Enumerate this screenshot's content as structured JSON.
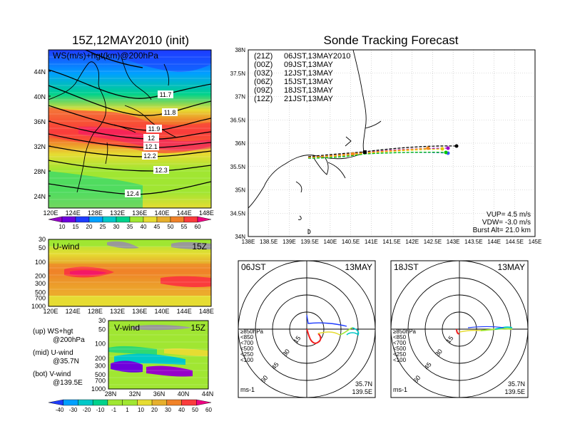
{
  "left": {
    "title": "15Z,12MAY2010 (init)",
    "top_panel": {
      "label": "WS(m/s)+hgt(km)@200hPa",
      "lat_ticks": [
        "44N",
        "40N",
        "36N",
        "32N",
        "28N",
        "24N"
      ],
      "lon_ticks": [
        "120E",
        "124E",
        "128E",
        "132E",
        "136E",
        "140E",
        "144E",
        "148E"
      ],
      "contours": [
        "11.7",
        "11.8",
        "11.9",
        "12",
        "12.1",
        "12.2",
        "12.3",
        "12.4"
      ],
      "colorbar": {
        "ticks": [
          "10",
          "15",
          "20",
          "25",
          "30",
          "35",
          "40",
          "45",
          "50",
          "55",
          "60"
        ],
        "colors": [
          "#9600c8",
          "#6e00dc",
          "#1e3cff",
          "#00a0ff",
          "#00c8c8",
          "#00d28c",
          "#a0e632",
          "#e6dc32",
          "#e6af2d",
          "#f08228",
          "#fa3c3c",
          "#f00082"
        ]
      }
    },
    "uwind_panel": {
      "label": "U-wind",
      "time": "15Z",
      "p_ticks": [
        "30",
        "50",
        "100",
        "200",
        "300",
        "500",
        "700",
        "1000"
      ],
      "lon_ticks": [
        "120E",
        "124E",
        "128E",
        "132E",
        "136E",
        "140E",
        "144E",
        "148E"
      ]
    },
    "vwind_panel": {
      "label": "V-wind",
      "time": "15Z",
      "p_ticks": [
        "30",
        "50",
        "100",
        "200",
        "300",
        "500",
        "700",
        "1000"
      ],
      "lat_ticks": [
        "28N",
        "32N",
        "36N",
        "40N",
        "44N"
      ]
    },
    "legend_notes": [
      {
        "line1": "(up) WS+hgt",
        "line2": "@200hPa"
      },
      {
        "line1": "(mid) U-wind",
        "line2": "@35.7N"
      },
      {
        "line1": "(bot) V-wind",
        "line2": "@139.5E"
      }
    ],
    "bottom_colorbar": {
      "ticks": [
        "-40",
        "-30",
        "-20",
        "-10",
        "-1",
        "1",
        "10",
        "20",
        "30",
        "40",
        "50",
        "60"
      ],
      "colors": [
        "#1e3cff",
        "#00a0ff",
        "#00c8c8",
        "#00d28c",
        "#a0e632",
        "#a0e632",
        "#e6dc32",
        "#e6af2d",
        "#f08228",
        "#fa3c3c",
        "#f00082"
      ]
    }
  },
  "right": {
    "title": "Sonde Tracking Forecast",
    "map": {
      "lat_ticks": [
        "38N",
        "37.5N",
        "37N",
        "36.5N",
        "36N",
        "35.5N",
        "35N",
        "34.5N",
        "34N"
      ],
      "lon_ticks": [
        "138E",
        "138.5E",
        "139E",
        "139.5E",
        "140E",
        "140.5E",
        "141E",
        "141.5E",
        "142E",
        "142.5E",
        "143E",
        "143.5E",
        "144E",
        "144.5E",
        "145E"
      ],
      "params": [
        "VUP= 4.5 m/s",
        "VDW= -3.0 m/s",
        "Burst Alt= 21.0 km"
      ]
    },
    "legend": [
      {
        "code": "(21Z)",
        "time": "06JST,13MAY2010",
        "color": "#000000"
      },
      {
        "code": "(00Z)",
        "time": "09JST,13MAY",
        "color": "#a000c8"
      },
      {
        "code": "(03Z)",
        "time": "12JST,13MAY",
        "color": "#3c50ff"
      },
      {
        "code": "(06Z)",
        "time": "15JST,13MAY",
        "color": "#00c800"
      },
      {
        "code": "(09Z)",
        "time": "18JST,13MAY",
        "color": "#e6c800"
      },
      {
        "code": "(12Z)",
        "time": "21JST,13MAY",
        "color": "#f08c1e"
      }
    ],
    "polar_left": {
      "time": "06JST",
      "date": "13MAY",
      "ring_labels": [
        "15",
        "30",
        "45",
        "60"
      ],
      "level_legend": [
        "≥850hPa",
        "<850",
        "<700",
        "<500",
        "<250",
        "<100"
      ],
      "level_colors": [
        "#f01e1e",
        "#f08228",
        "#e6dc32",
        "#a0e632",
        "#00c8c8",
        "#1e3cff"
      ],
      "unit": "ms-1",
      "lat": "35.7N",
      "lon": "139.5E"
    },
    "polar_right": {
      "time": "18JST",
      "date": "13MAY",
      "ring_labels": [
        "15",
        "30",
        "45",
        "60"
      ],
      "level_legend": [
        "≥850hPa",
        "<850",
        "<700",
        "<500",
        "<250",
        "<100"
      ],
      "level_colors": [
        "#f01e1e",
        "#f08228",
        "#e6dc32",
        "#a0e632",
        "#00c8c8",
        "#1e3cff"
      ],
      "unit": "ms-1",
      "lat": "35.7N",
      "lon": "139.5E"
    }
  }
}
